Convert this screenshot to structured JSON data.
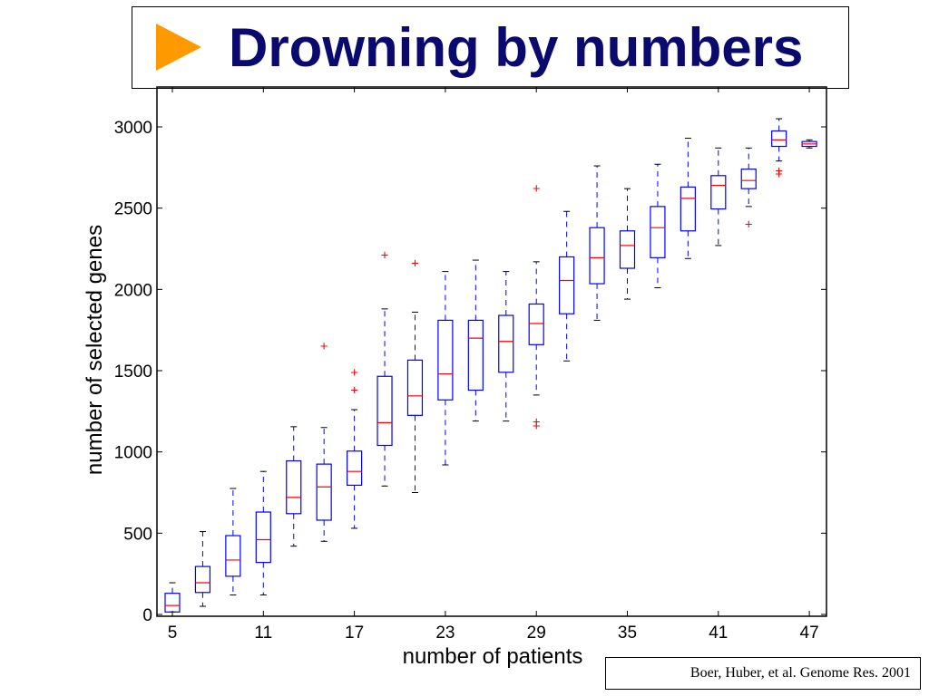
{
  "slide": {
    "title": "Drowning by numbers",
    "citation": "Boer, Huber, et al. Genome Res. 2001"
  },
  "colors": {
    "title": "#0a0a6e",
    "arrow": "#ff9900",
    "box": "#0000ff",
    "median": "#ff0000",
    "outlier": "#ff0000",
    "axis": "#000000"
  },
  "chart_data": {
    "type": "boxplot",
    "xlabel": "number of patients",
    "ylabel": "number of selected genes",
    "ylim": [
      0,
      3000
    ],
    "y_ticks": [
      "0",
      "500",
      "1000",
      "1500",
      "2000",
      "2500",
      "3000"
    ],
    "x_ticks": [
      "5",
      "11",
      "17",
      "23",
      "29",
      "35",
      "41",
      "47"
    ],
    "x_range": [
      4,
      48
    ],
    "grid": false,
    "series": [
      {
        "x": 5,
        "whisker_low": 15,
        "q1": 15,
        "median": 55,
        "q3": 130,
        "whisker_high": 195,
        "outliers": []
      },
      {
        "x": 7,
        "whisker_low": 50,
        "q1": 135,
        "median": 195,
        "q3": 295,
        "whisker_high": 510,
        "outliers": []
      },
      {
        "x": 9,
        "whisker_low": 120,
        "q1": 235,
        "median": 335,
        "q3": 485,
        "whisker_high": 775,
        "outliers": []
      },
      {
        "x": 11,
        "whisker_low": 120,
        "q1": 320,
        "median": 460,
        "q3": 630,
        "whisker_high": 880,
        "outliers": []
      },
      {
        "x": 13,
        "whisker_low": 420,
        "q1": 620,
        "median": 720,
        "q3": 945,
        "whisker_high": 1155,
        "outliers": []
      },
      {
        "x": 15,
        "whisker_low": 450,
        "q1": 580,
        "median": 785,
        "q3": 925,
        "whisker_high": 1150,
        "outliers": [
          1650
        ]
      },
      {
        "x": 17,
        "whisker_low": 530,
        "q1": 795,
        "median": 880,
        "q3": 1005,
        "whisker_high": 1260,
        "outliers": [
          1380,
          1490
        ]
      },
      {
        "x": 19,
        "whisker_low": 790,
        "q1": 1040,
        "median": 1180,
        "q3": 1465,
        "whisker_high": 1880,
        "outliers": [
          2210
        ]
      },
      {
        "x": 21,
        "whisker_low": 750,
        "q1": 1225,
        "median": 1345,
        "q3": 1565,
        "whisker_high": 1860,
        "outliers": [
          2160
        ]
      },
      {
        "x": 23,
        "whisker_low": 920,
        "q1": 1320,
        "median": 1480,
        "q3": 1810,
        "whisker_high": 2110,
        "outliers": []
      },
      {
        "x": 25,
        "whisker_low": 1190,
        "q1": 1380,
        "median": 1700,
        "q3": 1810,
        "whisker_high": 2180,
        "outliers": []
      },
      {
        "x": 27,
        "whisker_low": 1190,
        "q1": 1490,
        "median": 1680,
        "q3": 1840,
        "whisker_high": 2110,
        "outliers": []
      },
      {
        "x": 29,
        "whisker_low": 1350,
        "q1": 1660,
        "median": 1790,
        "q3": 1910,
        "whisker_high": 2170,
        "outliers": [
          1160,
          1185,
          2620
        ]
      },
      {
        "x": 31,
        "whisker_low": 1560,
        "q1": 1850,
        "median": 2055,
        "q3": 2200,
        "whisker_high": 2480,
        "outliers": []
      },
      {
        "x": 33,
        "whisker_low": 1810,
        "q1": 2035,
        "median": 2195,
        "q3": 2380,
        "whisker_high": 2760,
        "outliers": []
      },
      {
        "x": 35,
        "whisker_low": 1940,
        "q1": 2130,
        "median": 2270,
        "q3": 2360,
        "whisker_high": 2620,
        "outliers": []
      },
      {
        "x": 37,
        "whisker_low": 2010,
        "q1": 2195,
        "median": 2380,
        "q3": 2510,
        "whisker_high": 2770,
        "outliers": []
      },
      {
        "x": 39,
        "whisker_low": 2190,
        "q1": 2360,
        "median": 2560,
        "q3": 2630,
        "whisker_high": 2930,
        "outliers": []
      },
      {
        "x": 41,
        "whisker_low": 2270,
        "q1": 2495,
        "median": 2640,
        "q3": 2700,
        "whisker_high": 2870,
        "outliers": []
      },
      {
        "x": 43,
        "whisker_low": 2510,
        "q1": 2620,
        "median": 2670,
        "q3": 2740,
        "whisker_high": 2870,
        "outliers": [
          2400
        ]
      },
      {
        "x": 45,
        "whisker_low": 2790,
        "q1": 2880,
        "median": 2920,
        "q3": 2975,
        "whisker_high": 3050,
        "outliers": [
          2710,
          2730
        ]
      },
      {
        "x": 47,
        "whisker_low": 2870,
        "q1": 2880,
        "median": 2895,
        "q3": 2910,
        "whisker_high": 2920,
        "outliers": []
      }
    ]
  }
}
